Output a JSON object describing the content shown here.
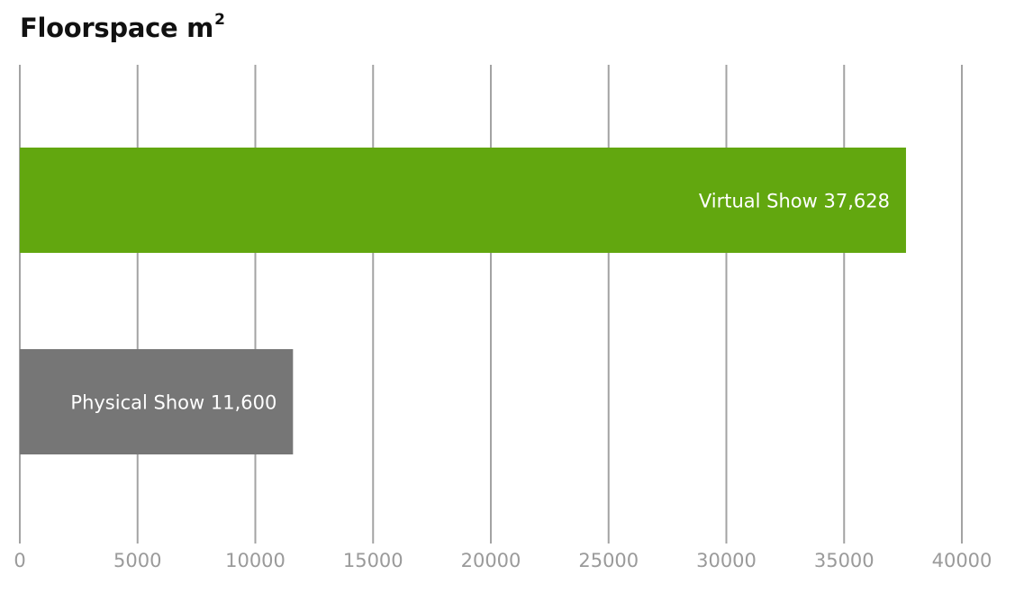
{
  "chart_data": {
    "type": "bar",
    "orientation": "horizontal",
    "title": "Floorspace m",
    "title_superscript": "2",
    "categories": [
      "Virtual Show",
      "Physical Show"
    ],
    "values": [
      37628,
      11600
    ],
    "data_labels": [
      "Virtual Show 37,628",
      "Physical Show 11,600"
    ],
    "colors": [
      "#62a70f",
      "#767676"
    ],
    "xlim": [
      0,
      40000
    ],
    "x_ticks": [
      0,
      5000,
      10000,
      15000,
      20000,
      25000,
      30000,
      35000,
      40000
    ],
    "x_tick_labels": [
      "0",
      "5000",
      "10000",
      "15000",
      "20000",
      "25000",
      "30000",
      "35000",
      "40000"
    ],
    "grid": true,
    "xlabel": "",
    "ylabel": ""
  }
}
